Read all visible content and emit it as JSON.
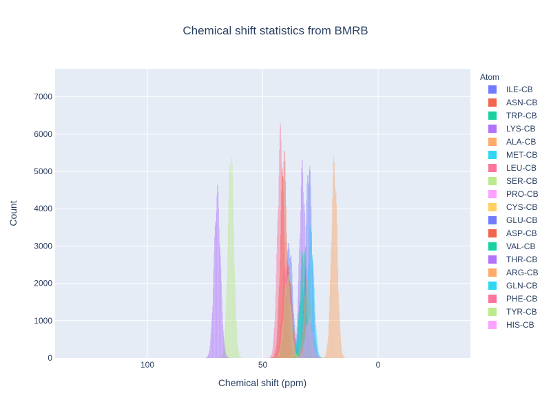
{
  "chart_data": {
    "type": "bar",
    "subtype": "overlaid-histogram",
    "title": "Chemical shift statistics from BMRB",
    "xlabel": "Chemical shift (ppm)",
    "ylabel": "Count",
    "x_reversed": true,
    "xlim": [
      140,
      -40
    ],
    "ylim": [
      0,
      7750
    ],
    "x_ticks": [
      100,
      50,
      0
    ],
    "y_ticks": [
      0,
      1000,
      2000,
      3000,
      4000,
      5000,
      6000,
      7000
    ],
    "legend_title": "Atom",
    "legend_position": "right",
    "plot_background": "#e5ecf6",
    "grid": true,
    "bar_opacity": 0.5,
    "series": [
      {
        "name": "ILE-CB",
        "color": "#636efa",
        "peak_x": 38.5,
        "width": 1.5,
        "peak_count": 3200
      },
      {
        "name": "ASN-CB",
        "color": "#EF553B",
        "peak_x": 38.8,
        "width": 1.6,
        "peak_count": 2500
      },
      {
        "name": "TRP-CB",
        "color": "#00cc96",
        "peak_x": 29.5,
        "width": 1.4,
        "peak_count": 1000
      },
      {
        "name": "LYS-CB",
        "color": "#ab63fa",
        "peak_x": 32.8,
        "width": 1.3,
        "peak_count": 5400
      },
      {
        "name": "ALA-CB",
        "color": "#FFA15A",
        "peak_x": 19.0,
        "width": 1.3,
        "peak_count": 5550
      },
      {
        "name": "MET-CB",
        "color": "#19d3f3",
        "peak_x": 32.9,
        "width": 1.5,
        "peak_count": 1900
      },
      {
        "name": "LEU-CB",
        "color": "#FF6692",
        "peak_x": 42.2,
        "width": 1.4,
        "peak_count": 6400
      },
      {
        "name": "SER-CB",
        "color": "#B6E880",
        "peak_x": 63.8,
        "width": 1.3,
        "peak_count": 5850
      },
      {
        "name": "PRO-CB",
        "color": "#FF97FF",
        "peak_x": 31.9,
        "width": 1.0,
        "peak_count": 1100
      },
      {
        "name": "CYS-CB",
        "color": "#FECB52",
        "peak_x": 33.0,
        "width": 4.0,
        "peak_count": 150
      },
      {
        "name": "GLU-CB",
        "color": "#636efa",
        "peak_x": 30.0,
        "width": 1.4,
        "peak_count": 5500
      },
      {
        "name": "ASP-CB",
        "color": "#EF553B",
        "peak_x": 40.9,
        "width": 1.4,
        "peak_count": 5800
      },
      {
        "name": "VAL-CB",
        "color": "#00cc96",
        "peak_x": 32.4,
        "width": 1.5,
        "peak_count": 3100
      },
      {
        "name": "THR-CB",
        "color": "#ab63fa",
        "peak_x": 69.7,
        "width": 1.4,
        "peak_count": 4700
      },
      {
        "name": "ARG-CB",
        "color": "#FFA15A",
        "peak_x": 30.7,
        "width": 1.4,
        "peak_count": 2300
      },
      {
        "name": "GLN-CB",
        "color": "#19d3f3",
        "peak_x": 29.2,
        "width": 1.4,
        "peak_count": 3600
      },
      {
        "name": "PHE-CB",
        "color": "#FF6692",
        "peak_x": 39.9,
        "width": 1.6,
        "peak_count": 2700
      },
      {
        "name": "TYR-CB",
        "color": "#B6E880",
        "peak_x": 39.3,
        "width": 1.6,
        "peak_count": 2300
      },
      {
        "name": "HIS-CB",
        "color": "#FF97FF",
        "peak_x": 30.0,
        "width": 1.6,
        "peak_count": 1100
      }
    ]
  }
}
